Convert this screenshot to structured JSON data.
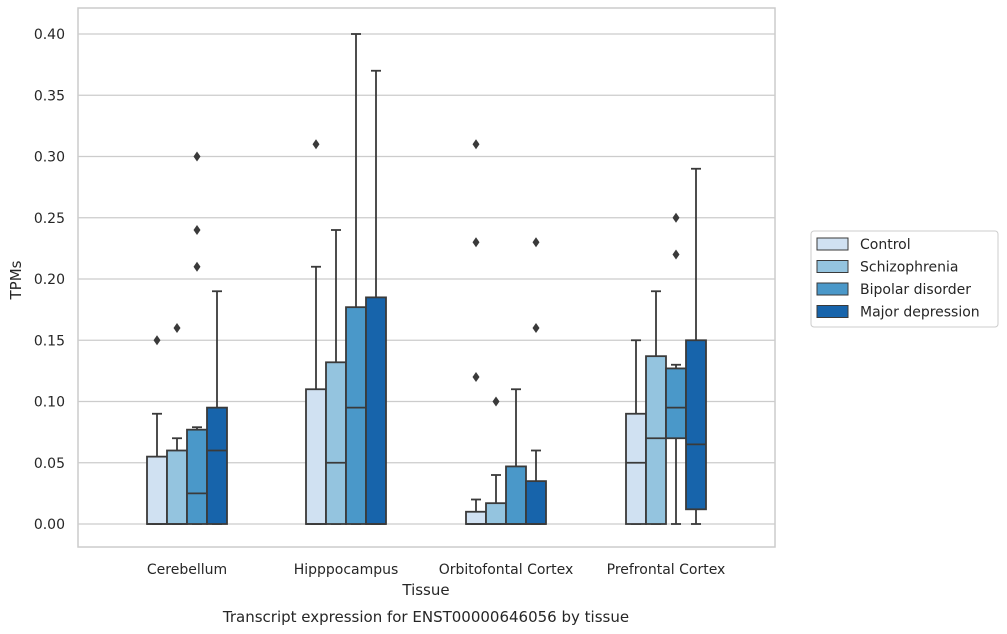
{
  "chart_data": {
    "type": "box",
    "title": "Transcript expression for ENST00000646056 by tissue",
    "xlabel": "Tissue",
    "ylabel": "TPMs",
    "ylim": [
      -0.02,
      0.42
    ],
    "yticks": [
      "0.00",
      "0.05",
      "0.10",
      "0.15",
      "0.20",
      "0.25",
      "0.30",
      "0.35",
      "0.40"
    ],
    "grid": "horizontal",
    "legend_position": "right",
    "categories": [
      "Cerebellum",
      "Hipppocampus",
      "Orbitofontal Cortex",
      "Prefrontal Cortex"
    ],
    "series": [
      {
        "name": "Control",
        "color": "#d0e1f2",
        "boxes": [
          {
            "q1": 0.0,
            "median": 0.0,
            "q3": 0.055,
            "whisker_low": 0.0,
            "whisker_high": 0.09,
            "outliers": [
              0.15
            ]
          },
          {
            "q1": 0.0,
            "median": 0.0,
            "q3": 0.11,
            "whisker_low": 0.0,
            "whisker_high": 0.21,
            "outliers": [
              0.31
            ]
          },
          {
            "q1": 0.0,
            "median": 0.0,
            "q3": 0.01,
            "whisker_low": 0.0,
            "whisker_high": 0.02,
            "outliers": [
              0.12,
              0.23,
              0.31
            ]
          },
          {
            "q1": 0.0,
            "median": 0.05,
            "q3": 0.09,
            "whisker_low": 0.0,
            "whisker_high": 0.15,
            "outliers": []
          }
        ]
      },
      {
        "name": "Schizophrenia",
        "color": "#94c4df",
        "boxes": [
          {
            "q1": 0.0,
            "median": 0.0,
            "q3": 0.06,
            "whisker_low": 0.0,
            "whisker_high": 0.07,
            "outliers": [
              0.16
            ]
          },
          {
            "q1": 0.0,
            "median": 0.05,
            "q3": 0.132,
            "whisker_low": 0.0,
            "whisker_high": 0.24,
            "outliers": []
          },
          {
            "q1": 0.0,
            "median": 0.0,
            "q3": 0.017,
            "whisker_low": 0.0,
            "whisker_high": 0.04,
            "outliers": [
              0.1
            ]
          },
          {
            "q1": 0.0,
            "median": 0.07,
            "q3": 0.137,
            "whisker_low": 0.0,
            "whisker_high": 0.19,
            "outliers": []
          }
        ]
      },
      {
        "name": "Bipolar disorder",
        "color": "#4a98c9",
        "boxes": [
          {
            "q1": 0.0,
            "median": 0.025,
            "q3": 0.077,
            "whisker_low": 0.0,
            "whisker_high": 0.079,
            "outliers": [
              0.21,
              0.24,
              0.3
            ]
          },
          {
            "q1": 0.0,
            "median": 0.095,
            "q3": 0.177,
            "whisker_low": 0.0,
            "whisker_high": 0.4,
            "outliers": []
          },
          {
            "q1": 0.0,
            "median": 0.0,
            "q3": 0.047,
            "whisker_low": 0.0,
            "whisker_high": 0.11,
            "outliers": []
          },
          {
            "q1": 0.07,
            "median": 0.095,
            "q3": 0.127,
            "whisker_low": 0.0,
            "whisker_high": 0.13,
            "outliers": [
              0.22,
              0.25
            ]
          }
        ]
      },
      {
        "name": "Major depression",
        "color": "#1764ab",
        "boxes": [
          {
            "q1": 0.0,
            "median": 0.06,
            "q3": 0.095,
            "whisker_low": 0.0,
            "whisker_high": 0.19,
            "outliers": []
          },
          {
            "q1": 0.0,
            "median": 0.0,
            "q3": 0.185,
            "whisker_low": 0.0,
            "whisker_high": 0.37,
            "outliers": []
          },
          {
            "q1": 0.0,
            "median": 0.0,
            "q3": 0.035,
            "whisker_low": 0.0,
            "whisker_high": 0.06,
            "outliers": [
              0.16,
              0.23
            ]
          },
          {
            "q1": 0.012,
            "median": 0.065,
            "q3": 0.15,
            "whisker_low": 0.0,
            "whisker_high": 0.29,
            "outliers": []
          }
        ]
      }
    ],
    "colors": {
      "grid": "#cccccc",
      "frame": "#cccccc",
      "edge": "#3a3a3a",
      "text": "#262626"
    }
  }
}
